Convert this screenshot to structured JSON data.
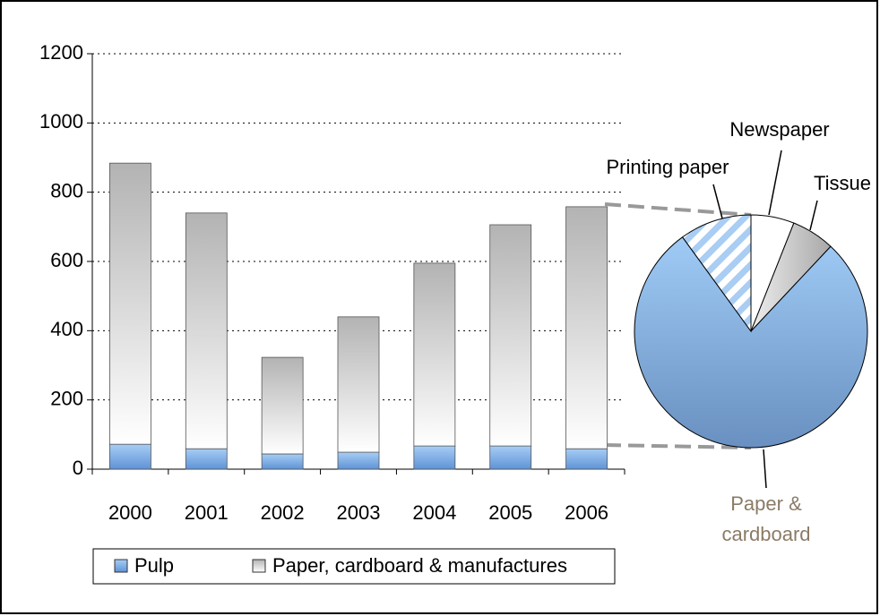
{
  "chart_data": [
    {
      "type": "bar",
      "stacked": true,
      "categories": [
        "2000",
        "2001",
        "2002",
        "2003",
        "2004",
        "2005",
        "2006"
      ],
      "series": [
        {
          "name": "Pulp",
          "color": "#8fbdf0",
          "values": [
            72,
            59,
            44,
            49,
            67,
            67,
            59
          ]
        },
        {
          "name": "Paper, cardboard & manufactures",
          "color": "#c0c0c0",
          "values": [
            812,
            681,
            279,
            391,
            528,
            639,
            699
          ]
        }
      ],
      "ylim": [
        0,
        1200
      ],
      "yticks": [
        0,
        200,
        400,
        600,
        800,
        1000,
        1200
      ],
      "grid": true,
      "legend": "bottom"
    },
    {
      "type": "pie",
      "slices": [
        {
          "label": "Newspaper",
          "value": 6,
          "color": "#ffffff"
        },
        {
          "label": "Tissue",
          "value": 6,
          "color": "#c8c8c8"
        },
        {
          "label": "Paper & cardboard",
          "value": 78,
          "color": "#8fbdf0"
        },
        {
          "label": "Printing paper",
          "value": 10,
          "color": "#a9cdf3",
          "pattern": "hatch"
        }
      ]
    }
  ]
}
